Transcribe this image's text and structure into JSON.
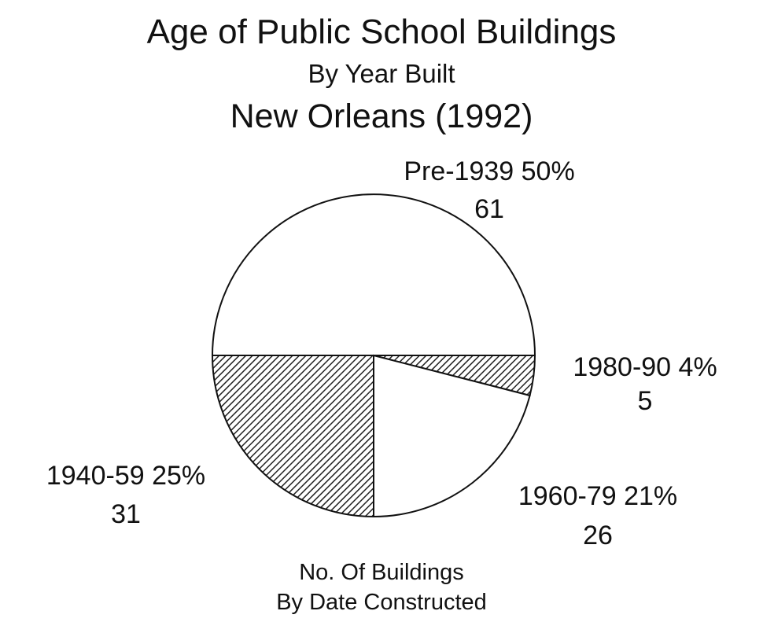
{
  "chart_data": {
    "type": "pie",
    "title": "Age of Public School Buildings",
    "subtitle": "By Year Built",
    "subtitle2": "New Orleans (1992)",
    "slices": [
      {
        "label": "Pre-1939",
        "percent": 50,
        "percent_label": "50%",
        "count": 61,
        "pattern": "plain",
        "color": "#ffffff"
      },
      {
        "label": "1980-90",
        "percent": 4,
        "percent_label": "4%",
        "count": 5,
        "pattern": "hatched",
        "color": "#555555"
      },
      {
        "label": "1960-79",
        "percent": 21,
        "percent_label": "21%",
        "count": 26,
        "pattern": "plain",
        "color": "#ffffff"
      },
      {
        "label": "1940-59",
        "percent": 25,
        "percent_label": "25%",
        "count": 31,
        "pattern": "hatched",
        "color": "#555555"
      }
    ],
    "footnote": [
      "No. Of Buildings",
      "By Date Constructed"
    ]
  }
}
